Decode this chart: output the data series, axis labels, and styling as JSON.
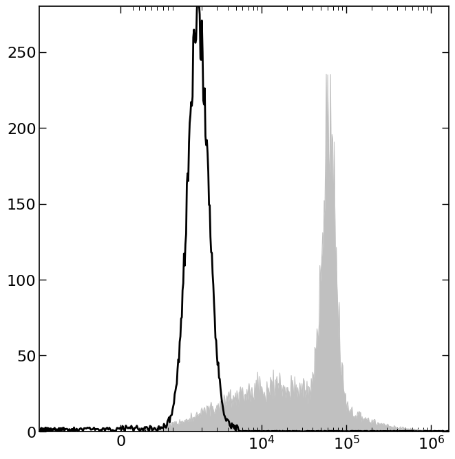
{
  "background_color": "#ffffff",
  "ylim": [
    0,
    280
  ],
  "yticks": [
    0,
    50,
    100,
    150,
    200,
    250
  ],
  "black_hist": {
    "peak_x": 1800,
    "sigma": 0.28,
    "peak_y": 270,
    "color": "#000000",
    "linewidth": 2.0
  },
  "gray_hist": {
    "peak_x": 62000,
    "sigma_peak": 0.18,
    "peak_y": 230,
    "noise_y": 32,
    "color": "#c0c0c0",
    "linewidth": 0.8
  },
  "xlim_low": -2000,
  "xlim_high": 1600000,
  "linthresh": 700,
  "linscale": 0.45,
  "xtick_vals": [
    0,
    10000,
    100000,
    1000000
  ],
  "xtick_labels": [
    "0",
    "$10^4$",
    "$10^5$",
    "$10^6$"
  ]
}
